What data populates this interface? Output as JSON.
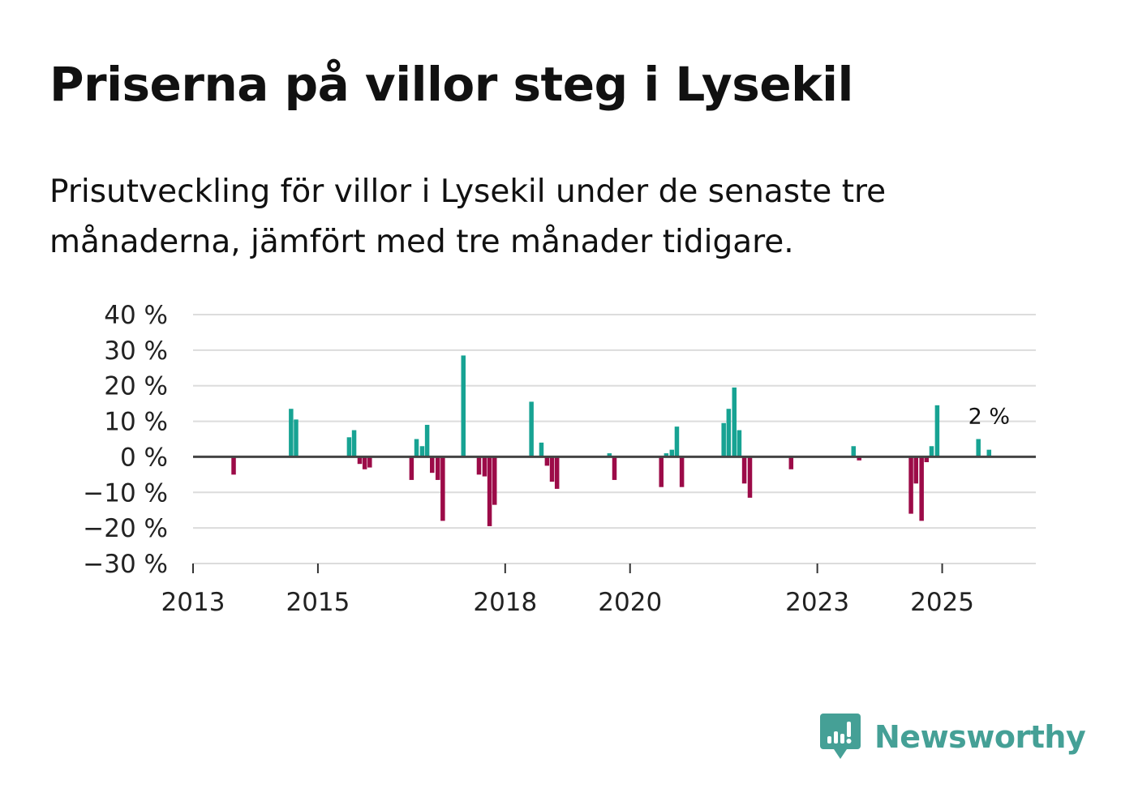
{
  "title": "Priserna på villor steg i Lysekil",
  "subtitle": "Prisutveckling för villor i Lysekil under de senaste tre månaderna, jämfört med tre månader tidigare.",
  "brand": {
    "name": "Newsworthy",
    "color": "#45a096"
  },
  "colors": {
    "positive": "#17a393",
    "negative": "#9c0b48",
    "grid": "#dcdcdc",
    "zero_line": "#444444"
  },
  "chart_data": {
    "type": "bar",
    "title": "Priserna på villor steg i Lysekil",
    "xlabel": "",
    "ylabel": "",
    "x_range": [
      2013.0,
      2026.5
    ],
    "ylim": [
      -30,
      40
    ],
    "grid": true,
    "y_ticks": [
      {
        "value": 40,
        "label": "40 %"
      },
      {
        "value": 30,
        "label": "30 %"
      },
      {
        "value": 20,
        "label": "20 %"
      },
      {
        "value": 10,
        "label": "10 %"
      },
      {
        "value": 0,
        "label": "0 %"
      },
      {
        "value": -10,
        "label": "−10 %"
      },
      {
        "value": -20,
        "label": "−20 %"
      },
      {
        "value": -30,
        "label": "−30 %"
      }
    ],
    "x_ticks": [
      {
        "value": 2013,
        "label": "2013"
      },
      {
        "value": 2015,
        "label": "2015"
      },
      {
        "value": 2018,
        "label": "2018"
      },
      {
        "value": 2020,
        "label": "2020"
      },
      {
        "value": 2023,
        "label": "2023"
      },
      {
        "value": 2025,
        "label": "2025"
      }
    ],
    "series": [
      {
        "name": "Prisutveckling",
        "points": [
          {
            "x": 2013.65,
            "y": -5
          },
          {
            "x": 2014.57,
            "y": 13.5
          },
          {
            "x": 2014.65,
            "y": 10.5
          },
          {
            "x": 2015.5,
            "y": 5.5
          },
          {
            "x": 2015.58,
            "y": 7.5
          },
          {
            "x": 2015.67,
            "y": -2
          },
          {
            "x": 2015.75,
            "y": -3.5
          },
          {
            "x": 2015.83,
            "y": -3
          },
          {
            "x": 2016.5,
            "y": -6.5
          },
          {
            "x": 2016.58,
            "y": 5
          },
          {
            "x": 2016.67,
            "y": 3
          },
          {
            "x": 2016.75,
            "y": 9
          },
          {
            "x": 2016.83,
            "y": -4.5
          },
          {
            "x": 2016.92,
            "y": -6.5
          },
          {
            "x": 2017.0,
            "y": -18
          },
          {
            "x": 2017.33,
            "y": 28.5
          },
          {
            "x": 2017.58,
            "y": -5
          },
          {
            "x": 2017.67,
            "y": -5.5
          },
          {
            "x": 2017.75,
            "y": -19.5
          },
          {
            "x": 2017.83,
            "y": -13.5
          },
          {
            "x": 2018.42,
            "y": 15.5
          },
          {
            "x": 2018.58,
            "y": 4
          },
          {
            "x": 2018.67,
            "y": -2.5
          },
          {
            "x": 2018.75,
            "y": -7
          },
          {
            "x": 2018.83,
            "y": -9
          },
          {
            "x": 2019.67,
            "y": 1
          },
          {
            "x": 2019.75,
            "y": -6.5
          },
          {
            "x": 2020.5,
            "y": -8.5
          },
          {
            "x": 2020.58,
            "y": 1
          },
          {
            "x": 2020.67,
            "y": 2
          },
          {
            "x": 2020.75,
            "y": 8.5
          },
          {
            "x": 2020.83,
            "y": -8.5
          },
          {
            "x": 2021.5,
            "y": 9.5
          },
          {
            "x": 2021.58,
            "y": 13.5
          },
          {
            "x": 2021.67,
            "y": 19.5
          },
          {
            "x": 2021.75,
            "y": 7.5
          },
          {
            "x": 2021.83,
            "y": -7.5
          },
          {
            "x": 2021.92,
            "y": -11.5
          },
          {
            "x": 2022.58,
            "y": -3.5
          },
          {
            "x": 2023.58,
            "y": 3
          },
          {
            "x": 2023.67,
            "y": -1
          },
          {
            "x": 2024.5,
            "y": -16
          },
          {
            "x": 2024.58,
            "y": -7.5
          },
          {
            "x": 2024.67,
            "y": -18
          },
          {
            "x": 2024.75,
            "y": -1.5
          },
          {
            "x": 2024.83,
            "y": 3
          },
          {
            "x": 2024.92,
            "y": 14.5
          },
          {
            "x": 2025.58,
            "y": 5
          },
          {
            "x": 2025.75,
            "y": 2
          }
        ]
      }
    ],
    "annotations": [
      {
        "text": "2 %",
        "x": 2025.75,
        "y": 2
      }
    ]
  }
}
